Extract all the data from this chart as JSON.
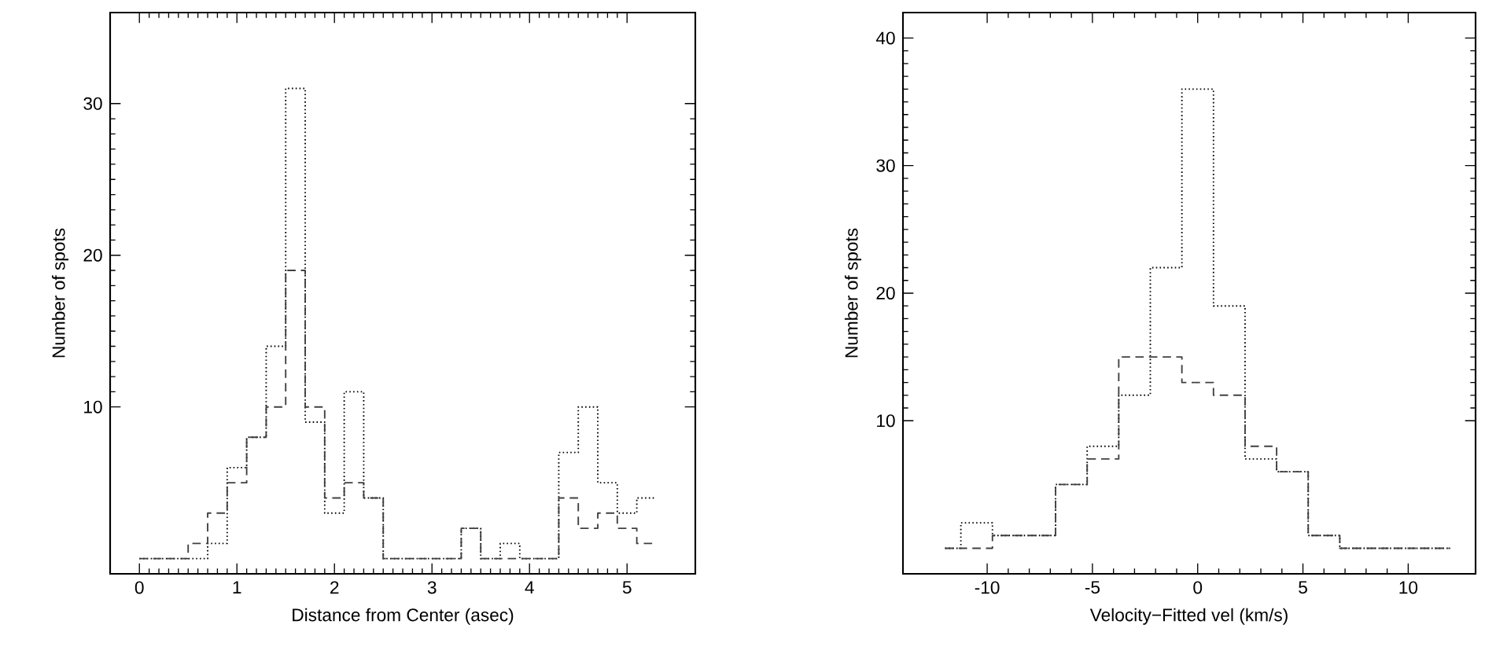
{
  "chart_data": [
    {
      "type": "histogram",
      "xlabel": "Distance from Center (asec)",
      "ylabel": "Number of spots",
      "xlim": [
        -0.3,
        5.7
      ],
      "ylim": [
        -1,
        36
      ],
      "xticks": [
        0,
        1,
        2,
        3,
        4,
        5
      ],
      "yticks": [
        10,
        20,
        30
      ],
      "bins": [
        0,
        0.1,
        0.3,
        0.5,
        0.7,
        0.9,
        1.1,
        1.3,
        1.5,
        1.7,
        1.9,
        2.1,
        2.3,
        2.5,
        2.7,
        2.9,
        3.1,
        3.3,
        3.5,
        3.7,
        3.9,
        4.1,
        4.3,
        4.5,
        4.7,
        4.9,
        5.1,
        5.3
      ],
      "series": [
        {
          "color": "#000000",
          "line_style": "dotted",
          "values": [
            0,
            0,
            0,
            0,
            1,
            6,
            8,
            14,
            31,
            9,
            3,
            11,
            4,
            0,
            0,
            0,
            0,
            2,
            0,
            1,
            0,
            0,
            7,
            10,
            5,
            3,
            4
          ]
        },
        {
          "color": "#404040",
          "line_style": "dashed",
          "values": [
            0,
            0,
            0,
            1,
            3,
            5,
            8,
            10,
            19,
            10,
            4,
            5,
            4,
            0,
            0,
            0,
            0,
            2,
            0,
            0,
            0,
            0,
            4,
            2,
            3,
            2,
            1
          ]
        }
      ]
    },
    {
      "type": "histogram",
      "xlabel": "Velocity−Fitted vel (km/s)",
      "ylabel": "Number of spots",
      "xlim": [
        -14,
        13.2
      ],
      "ylim": [
        -2,
        42
      ],
      "xticks": [
        -10,
        -5,
        0,
        5,
        10
      ],
      "yticks": [
        10,
        20,
        30,
        40
      ],
      "bins": [
        -12,
        -11.25,
        -9.75,
        -8.25,
        -6.75,
        -5.25,
        -3.75,
        -2.25,
        -0.75,
        0.75,
        2.25,
        3.75,
        5.25,
        6.75,
        8.25,
        9.75,
        11.25,
        12
      ],
      "series": [
        {
          "color": "#000000",
          "line_style": "dotted",
          "values": [
            0,
            2,
            1,
            1,
            5,
            8,
            12,
            22,
            36,
            19,
            7,
            6,
            1,
            0,
            0,
            0,
            0
          ]
        },
        {
          "color": "#404040",
          "line_style": "dashed",
          "values": [
            0,
            0,
            1,
            1,
            5,
            7,
            15,
            15,
            13,
            12,
            8,
            6,
            1,
            0,
            0,
            0,
            0
          ]
        }
      ]
    }
  ]
}
